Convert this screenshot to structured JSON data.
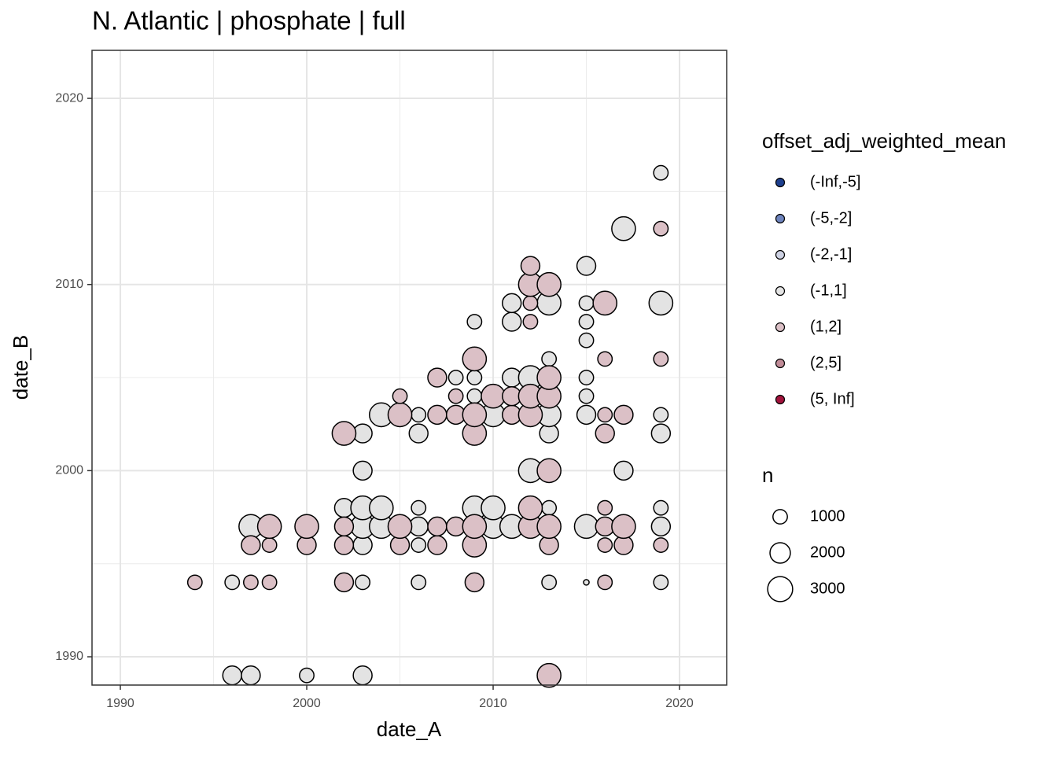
{
  "chart_data": {
    "type": "scatter",
    "title": "N. Atlantic | phosphate | full",
    "xlabel": "date_A",
    "ylabel": "date_B",
    "xlim": [
      1988.48,
      2022.53
    ],
    "ylim": [
      1988.48,
      2022.58
    ],
    "xticks": [
      1990,
      2000,
      2010,
      2020
    ],
    "yticks": [
      1990,
      2000,
      2010,
      2020
    ],
    "minor_xticks": [
      1995,
      2005,
      2015
    ],
    "minor_yticks": [
      1995,
      2005,
      2015
    ],
    "grid": true,
    "legend_title": "offset_adj_weighted_mean",
    "size_title": "n",
    "size_legend": [
      1000,
      2000,
      3000
    ],
    "series": [
      {
        "name": "(-Inf,-5]",
        "color": "#1d3f8e",
        "x": [],
        "y": [],
        "sizes": []
      },
      {
        "name": "(-5,-2]",
        "color": "#6e84bd",
        "x": [],
        "y": [],
        "sizes": []
      },
      {
        "name": "(-2,-1]",
        "color": "#cdd1e2",
        "x": [],
        "y": [],
        "sizes": []
      },
      {
        "name": "(-1,1]",
        "color": "#e3e3e3",
        "x": [
          1996,
          1997,
          2000,
          2003,
          1996,
          2003,
          2006,
          2013,
          2015,
          2019,
          2003,
          2006,
          1997,
          2003,
          2004,
          2006,
          2010,
          2011,
          2015,
          2019,
          2002,
          2003,
          2004,
          2006,
          2009,
          2010,
          2013,
          2019,
          2003,
          2012,
          2017,
          2003,
          2006,
          2013,
          2019,
          2004,
          2006,
          2010,
          2013,
          2015,
          2019,
          2009,
          2015,
          2008,
          2009,
          2011,
          2012,
          2015,
          2013,
          2015,
          2009,
          2011,
          2015,
          2011,
          2013,
          2015,
          2019,
          2015,
          2017,
          2019
        ],
        "y": [
          1989,
          1989,
          1989,
          1989,
          1994,
          1994,
          1994,
          1994,
          1994,
          1994,
          1996,
          1996,
          1997,
          1997,
          1997,
          1997,
          1997,
          1997,
          1997,
          1997,
          1998,
          1998,
          1998,
          1998,
          1998,
          1998,
          1998,
          1998,
          2000,
          2000,
          2000,
          2002,
          2002,
          2002,
          2002,
          2003,
          2003,
          2003,
          2003,
          2003,
          2003,
          2004,
          2004,
          2005,
          2005,
          2005,
          2005,
          2005,
          2006,
          2007,
          2008,
          2008,
          2008,
          2009,
          2009,
          2009,
          2009,
          2011,
          2013,
          2016
        ],
        "sizes": [
          1700,
          1700,
          1000,
          1700,
          1000,
          1000,
          1000,
          1000,
          150,
          1000,
          1700,
          1000,
          2700,
          2700,
          2700,
          1700,
          2700,
          2700,
          2700,
          1700,
          1700,
          2700,
          2700,
          1000,
          2700,
          2700,
          1000,
          1000,
          1700,
          2700,
          1700,
          1700,
          1700,
          1700,
          1700,
          2700,
          1000,
          2700,
          2700,
          1700,
          1000,
          1000,
          1000,
          1000,
          1000,
          1700,
          2700,
          1000,
          1000,
          1000,
          1000,
          1700,
          1000,
          1700,
          2700,
          1000,
          2700,
          1700,
          2700,
          1000
        ]
      },
      {
        "name": "(1,2]",
        "color": "#dbc0c6",
        "x": [
          2013,
          1994,
          1997,
          1998,
          2002,
          2009,
          2016,
          1997,
          1998,
          2000,
          2002,
          2005,
          2007,
          2009,
          2013,
          2016,
          2017,
          2019,
          1998,
          2000,
          2002,
          2005,
          2007,
          2008,
          2009,
          2012,
          2013,
          2016,
          2017,
          2012,
          2016,
          2013,
          2002,
          2009,
          2016,
          2005,
          2007,
          2008,
          2009,
          2011,
          2012,
          2016,
          2017,
          2005,
          2008,
          2010,
          2011,
          2012,
          2013,
          2007,
          2013,
          2009,
          2016,
          2019,
          2012,
          2012,
          2016,
          2012,
          2013,
          2012,
          2019
        ],
        "y": [
          1989,
          1994,
          1994,
          1994,
          1994,
          1994,
          1994,
          1996,
          1996,
          1996,
          1996,
          1996,
          1996,
          1996,
          1996,
          1996,
          1996,
          1996,
          1997,
          1997,
          1997,
          1997,
          1997,
          1997,
          1997,
          1997,
          1997,
          1997,
          1997,
          1998,
          1998,
          2000,
          2002,
          2002,
          2002,
          2003,
          2003,
          2003,
          2003,
          2003,
          2003,
          2003,
          2003,
          2004,
          2004,
          2004,
          2004,
          2004,
          2004,
          2005,
          2005,
          2006,
          2006,
          2006,
          2008,
          2009,
          2009,
          2010,
          2010,
          2011,
          2013
        ],
        "sizes": [
          2700,
          1000,
          1000,
          1000,
          1700,
          1700,
          1000,
          1700,
          1000,
          1700,
          1700,
          1700,
          1700,
          2700,
          1700,
          1000,
          1700,
          1000,
          2700,
          2700,
          1700,
          2700,
          1700,
          1700,
          2700,
          2700,
          2700,
          1700,
          2700,
          2700,
          1000,
          2700,
          2700,
          2700,
          1700,
          2700,
          1700,
          1700,
          2700,
          1700,
          2700,
          1000,
          1700,
          1000,
          1000,
          2700,
          1700,
          2700,
          2700,
          1700,
          2700,
          2700,
          1000,
          1000,
          1000,
          1000,
          2700,
          2700,
          2700,
          1700,
          1000
        ]
      },
      {
        "name": "(2,5]",
        "color": "#c08b97",
        "x": [],
        "y": [],
        "sizes": []
      },
      {
        "name": "(5, Inf]",
        "color": "#a2133c",
        "x": [],
        "y": [],
        "sizes": []
      }
    ]
  }
}
